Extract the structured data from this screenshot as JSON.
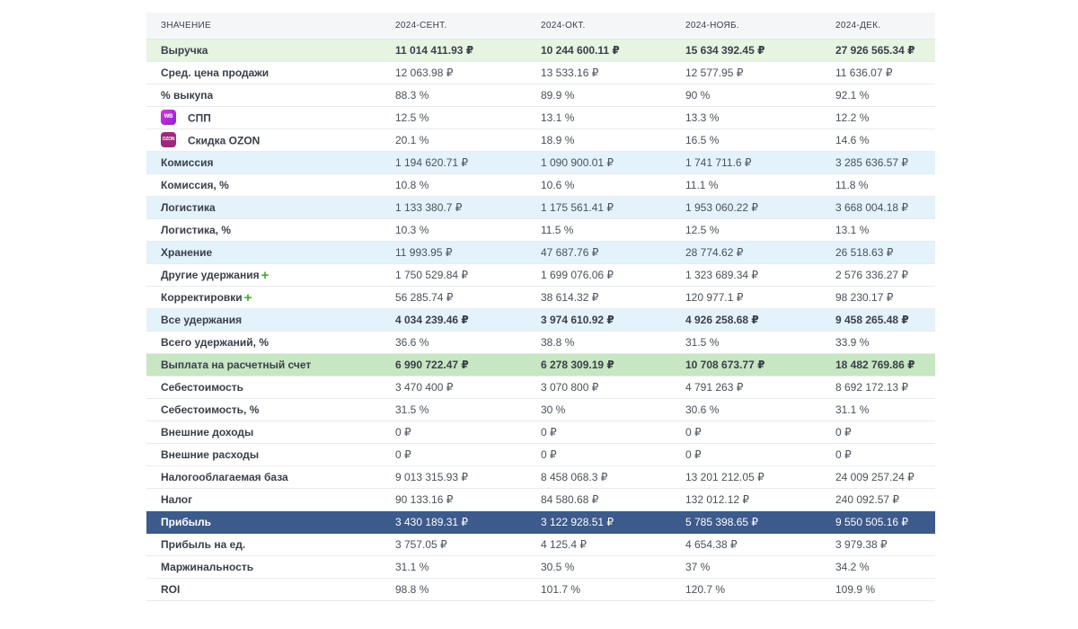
{
  "header": [
    "ЗНАЧЕНИЕ",
    "2024-СЕНТ.",
    "2024-ОКТ.",
    "2024-НОЯБ.",
    "2024-ДЕК."
  ],
  "rows": [
    {
      "label": "Выручка",
      "values": [
        "11 014 411.93 ₽",
        "10 244 600.11 ₽",
        "15 634 392.45 ₽",
        "27 926 565.34 ₽"
      ]
    },
    {
      "label": "Сред. цена продажи",
      "values": [
        "12 063.98 ₽",
        "13 533.16 ₽",
        "12 577.95 ₽",
        "11 636.07 ₽"
      ]
    },
    {
      "label": "% выкупа",
      "values": [
        "88.3 %",
        "89.9 %",
        "90 %",
        "92.1 %"
      ]
    },
    {
      "label": "СПП",
      "logo": "WB",
      "values": [
        "12.5 %",
        "13.1 %",
        "13.3 %",
        "12.2 %"
      ]
    },
    {
      "label": "Скидка OZON",
      "logo": "OZON",
      "values": [
        "20.1 %",
        "18.9 %",
        "16.5 %",
        "14.6 %"
      ]
    },
    {
      "label": "Комиссия",
      "values": [
        "1 194 620.71 ₽",
        "1 090 900.01 ₽",
        "1 741 711.6 ₽",
        "3 285 636.57 ₽"
      ]
    },
    {
      "label": "Комиссия, %",
      "values": [
        "10.8 %",
        "10.6 %",
        "11.1 %",
        "11.8 %"
      ]
    },
    {
      "label": "Логистика",
      "values": [
        "1 133 380.7 ₽",
        "1 175 561.41 ₽",
        "1 953 060.22 ₽",
        "3 668 004.18 ₽"
      ]
    },
    {
      "label": "Логистика, %",
      "values": [
        "10.3 %",
        "11.5 %",
        "12.5 %",
        "13.1 %"
      ]
    },
    {
      "label": "Хранение",
      "values": [
        "11 993.95 ₽",
        "47 687.76 ₽",
        "28 774.62 ₽",
        "26 518.63 ₽"
      ]
    },
    {
      "label": "Другие удержания",
      "plus": "+",
      "values": [
        "1 750 529.84 ₽",
        "1 699 076.06 ₽",
        "1 323 689.34 ₽",
        "2 576 336.27 ₽"
      ]
    },
    {
      "label": "Корректировки",
      "plus": "+",
      "values": [
        "56 285.74 ₽",
        "38 614.32 ₽",
        "120 977.1 ₽",
        "98 230.17 ₽"
      ]
    },
    {
      "label": "Все удержания",
      "values": [
        "4 034 239.46 ₽",
        "3 974 610.92 ₽",
        "4 926 258.68 ₽",
        "9 458 265.48 ₽"
      ]
    },
    {
      "label": "Всего удержаний, %",
      "values": [
        "36.6 %",
        "38.8 %",
        "31.5 %",
        "33.9 %"
      ]
    },
    {
      "label": "Выплата на расчетный счет",
      "values": [
        "6 990 722.47 ₽",
        "6 278 309.19 ₽",
        "10 708 673.77 ₽",
        "18 482 769.86 ₽"
      ]
    },
    {
      "label": "Себестоимость",
      "values": [
        "3 470 400 ₽",
        "3 070 800 ₽",
        "4 791 263 ₽",
        "8 692 172.13 ₽"
      ]
    },
    {
      "label": "Себестоимость, %",
      "values": [
        "31.5 %",
        "30 %",
        "30.6 %",
        "31.1 %"
      ]
    },
    {
      "label": "Внешние доходы",
      "values": [
        "0 ₽",
        "0 ₽",
        "0 ₽",
        "0 ₽"
      ]
    },
    {
      "label": "Внешние расходы",
      "values": [
        "0 ₽",
        "0 ₽",
        "0 ₽",
        "0 ₽"
      ]
    },
    {
      "label": "Налогооблагаемая база",
      "values": [
        "9 013 315.93 ₽",
        "8 458 068.3 ₽",
        "13 201 212.05 ₽",
        "24 009 257.24 ₽"
      ]
    },
    {
      "label": "Налог",
      "values": [
        "90 133.16 ₽",
        "84 580.68 ₽",
        "132 012.12 ₽",
        "240 092.57 ₽"
      ]
    },
    {
      "label": "Прибыль",
      "values": [
        "3 430 189.31 ₽",
        "3 122 928.51 ₽",
        "5 785 398.65 ₽",
        "9 550 505.16 ₽"
      ]
    },
    {
      "label": "Прибыль на ед.",
      "values": [
        "3 757.05 ₽",
        "4 125.4 ₽",
        "4 654.38 ₽",
        "3 979.38 ₽"
      ]
    },
    {
      "label": "Маржинальность",
      "values": [
        "31.1 %",
        "30.5 %",
        "37 %",
        "34.2 %"
      ]
    },
    {
      "label": "ROI",
      "values": [
        "98.8 %",
        "101.7 %",
        "120.7 %",
        "109.9 %"
      ]
    }
  ],
  "colors": {
    "header_bg": "#f5f6f8",
    "revenue_bg": "#e6f4e1",
    "deduction_bg": "#e3f2fb",
    "payout_bg": "#c7e6c2",
    "profit_bg": "#3c5a8b",
    "plus": "#3cae2e"
  }
}
